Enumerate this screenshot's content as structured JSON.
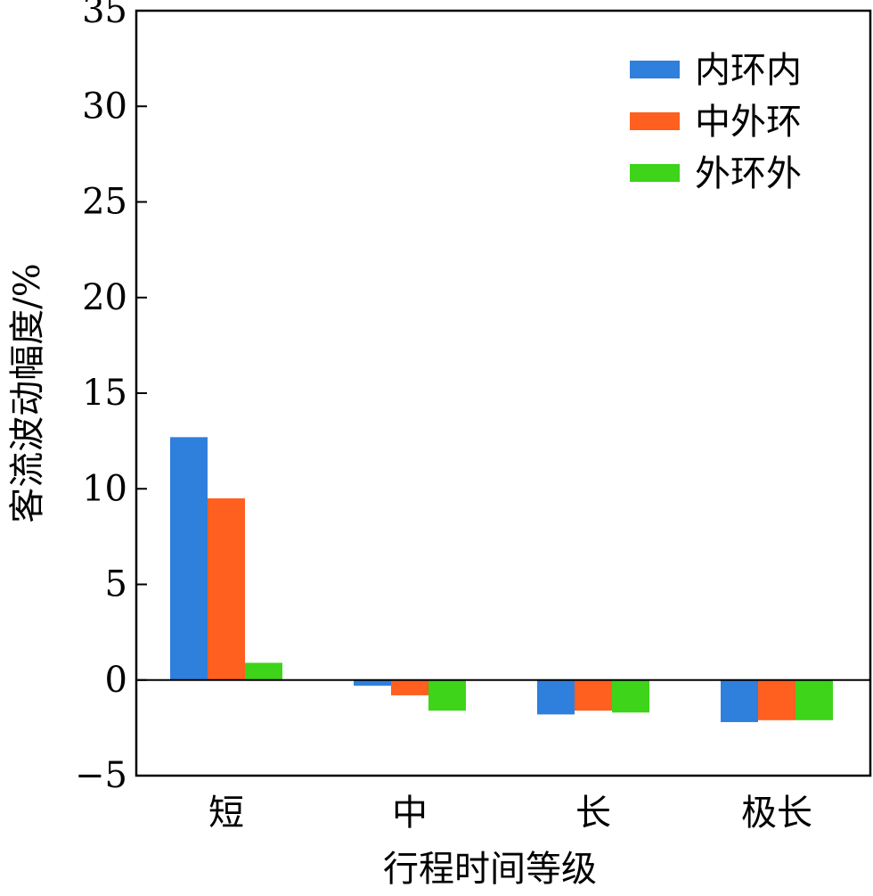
{
  "chart_data": {
    "type": "bar",
    "title": "",
    "xlabel": "行程时间等级",
    "ylabel": "客流波动幅度/%",
    "categories": [
      "短",
      "中",
      "长",
      "极长"
    ],
    "series": [
      {
        "name": "内环内",
        "color": "#2f7fdc",
        "values": [
          12.7,
          -0.3,
          -1.8,
          -2.2
        ]
      },
      {
        "name": "中外环",
        "color": "#ff5f1f",
        "values": [
          9.5,
          -0.8,
          -1.6,
          -2.1
        ]
      },
      {
        "name": "外环外",
        "color": "#3dd41a",
        "values": [
          0.9,
          -1.6,
          -1.7,
          -2.1
        ]
      }
    ],
    "ylim": [
      -5,
      35
    ],
    "yticks": [
      -5,
      0,
      5,
      10,
      15,
      20,
      25,
      30,
      35
    ],
    "ytick_labels": [
      "−5",
      "0",
      "5",
      "10",
      "15",
      "20",
      "25",
      "30",
      "35"
    ],
    "grid": false,
    "legend_position": "top-right",
    "zero_line": true
  }
}
